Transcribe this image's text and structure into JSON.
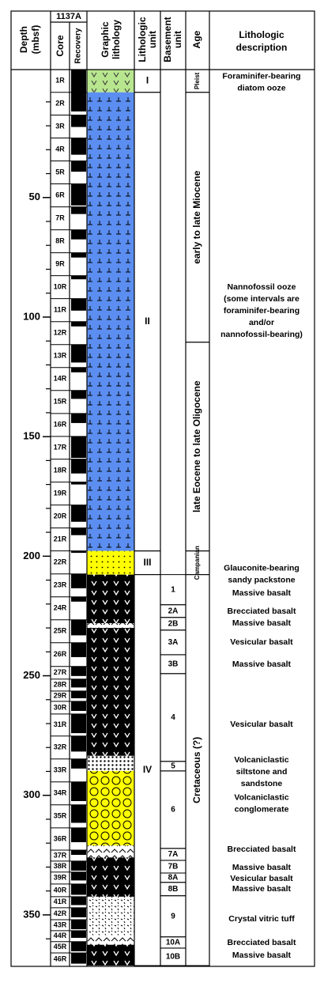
{
  "header": {
    "depth": [
      "Depth",
      "(mbsf)"
    ],
    "hole": "1137A",
    "core": "Core",
    "recovery": "Recovery",
    "graphic": [
      "Graphic",
      "lithology"
    ],
    "lithologic_unit": [
      "Lithologic",
      "unit"
    ],
    "basement_unit": [
      "Basement",
      "unit"
    ],
    "age": "Age",
    "description": [
      "Lithologic",
      "description"
    ]
  },
  "depth": {
    "range": [
      -3.5,
      371.2
    ],
    "ticks": [
      50,
      100,
      150,
      200,
      250,
      300,
      350
    ],
    "minor_ticks": [
      10,
      20,
      30,
      40,
      60,
      70,
      80,
      90,
      110,
      120,
      130,
      140,
      160,
      170,
      180,
      190,
      210,
      220,
      230,
      240,
      260,
      270,
      280,
      290,
      310,
      320,
      330,
      340,
      360
    ]
  },
  "cores": [
    {
      "name": "1R",
      "top": -3.5,
      "recovery": 9.5
    },
    {
      "name": "2R",
      "top": 6.0,
      "recovery": 8
    },
    {
      "name": "3R",
      "top": 15.5,
      "recovery": 5
    },
    {
      "name": "4R",
      "top": 25.1,
      "recovery": 7
    },
    {
      "name": "5R",
      "top": 34.7,
      "recovery": 4.5
    },
    {
      "name": "6R",
      "top": 44.3,
      "recovery": 9
    },
    {
      "name": "7R",
      "top": 53.9,
      "recovery": 3
    },
    {
      "name": "8R",
      "top": 63.5,
      "recovery": 4
    },
    {
      "name": "9R",
      "top": 73.1,
      "recovery": 2
    },
    {
      "name": "10R",
      "top": 82.7,
      "recovery": 1.5
    },
    {
      "name": "11R",
      "top": 92.3,
      "recovery": 5
    },
    {
      "name": "12R",
      "top": 101.9,
      "recovery": 2
    },
    {
      "name": "13R",
      "top": 111.5,
      "recovery": 7.5
    },
    {
      "name": "14R",
      "top": 121.1,
      "recovery": 2
    },
    {
      "name": "15R",
      "top": 130.7,
      "recovery": 3.5
    },
    {
      "name": "16R",
      "top": 140.3,
      "recovery": 4
    },
    {
      "name": "17R",
      "top": 149.9,
      "recovery": 9
    },
    {
      "name": "18R",
      "top": 159.4,
      "recovery": 6
    },
    {
      "name": "19R",
      "top": 169.0,
      "recovery": 1
    },
    {
      "name": "20R",
      "top": 178.6,
      "recovery": 7
    },
    {
      "name": "21R",
      "top": 188.2,
      "recovery": 3
    },
    {
      "name": "22R",
      "top": 197.8,
      "recovery": 0.8
    },
    {
      "name": "23R",
      "top": 207.4,
      "recovery": 6
    },
    {
      "name": "24R",
      "top": 217.0,
      "recovery": 2
    },
    {
      "name": "25R",
      "top": 226.6,
      "recovery": 6.5
    },
    {
      "name": "26R",
      "top": 236.2,
      "recovery": 6
    },
    {
      "name": "27R",
      "top": 246.1,
      "recovery": 4
    },
    {
      "name": "28R",
      "top": 251.4,
      "recovery": 3.5
    },
    {
      "name": "29R",
      "top": 256.4,
      "recovery": 3
    },
    {
      "name": "30R",
      "top": 260.7,
      "recovery": 4
    },
    {
      "name": "31R",
      "top": 266.0,
      "recovery": 8
    },
    {
      "name": "32R",
      "top": 275.2,
      "recovery": 6.5
    },
    {
      "name": "33R",
      "top": 284.8,
      "recovery": 4
    },
    {
      "name": "34R",
      "top": 294.4,
      "recovery": 8
    },
    {
      "name": "35R",
      "top": 304.0,
      "recovery": 7.5
    },
    {
      "name": "36R",
      "top": 313.6,
      "recovery": 6
    },
    {
      "name": "37R",
      "top": 322.9,
      "recovery": 2
    },
    {
      "name": "38R",
      "top": 327.5,
      "recovery": 4
    },
    {
      "name": "39R",
      "top": 332.1,
      "recovery": 3.5
    },
    {
      "name": "40R",
      "top": 337.1,
      "recovery": 4.5
    },
    {
      "name": "41R",
      "top": 342.4,
      "recovery": 3.5
    },
    {
      "name": "42R",
      "top": 347.0,
      "recovery": 4
    },
    {
      "name": "43R",
      "top": 352.0,
      "recovery": 4
    },
    {
      "name": "44R",
      "top": 356.6,
      "recovery": 3
    },
    {
      "name": "45R",
      "top": 361.2,
      "recovery": 4
    },
    {
      "name": "46R",
      "top": 365.9,
      "recovery": 4.5
    }
  ],
  "lithology": [
    {
      "top": -3.5,
      "bottom": 6.0,
      "pattern": "diatom"
    },
    {
      "top": 6.0,
      "bottom": 197.8,
      "pattern": "nanno"
    },
    {
      "top": 197.8,
      "bottom": 207.7,
      "pattern": "sand"
    },
    {
      "top": 207.7,
      "bottom": 228.0,
      "pattern": "basalt"
    },
    {
      "top": 228.0,
      "bottom": 230.0,
      "pattern": "breccia"
    },
    {
      "top": 230.0,
      "bottom": 283.5,
      "pattern": "basalt"
    },
    {
      "top": 283.5,
      "bottom": 289.8,
      "pattern": "silt"
    },
    {
      "top": 289.8,
      "bottom": 321.0,
      "pattern": "conglomerate"
    },
    {
      "top": 321.0,
      "bottom": 326.0,
      "pattern": "breccia"
    },
    {
      "top": 326.0,
      "bottom": 342.4,
      "pattern": "basalt"
    },
    {
      "top": 342.4,
      "bottom": 358.5,
      "pattern": "tuff"
    },
    {
      "top": 358.5,
      "bottom": 362.5,
      "pattern": "breccia"
    },
    {
      "top": 362.5,
      "bottom": 371.2,
      "pattern": "basalt"
    }
  ],
  "lithologic_units": [
    {
      "label": "I",
      "top": -3.5,
      "bottom": 6.0
    },
    {
      "label": "II",
      "top": 6.0,
      "bottom": 197.8
    },
    {
      "label": "III",
      "top": 197.8,
      "bottom": 207.7
    },
    {
      "label": "IV",
      "top": 207.7,
      "bottom": 371.2
    }
  ],
  "basement_units": [
    {
      "label": "1",
      "top": 207.7,
      "bottom": 220.3
    },
    {
      "label": "2A",
      "top": 220.3,
      "bottom": 225.6
    },
    {
      "label": "2B",
      "top": 225.6,
      "bottom": 230.9
    },
    {
      "label": "3A",
      "top": 230.9,
      "bottom": 241.2
    },
    {
      "label": "3B",
      "top": 241.2,
      "bottom": 249.1
    },
    {
      "label": "4",
      "top": 249.1,
      "bottom": 285.8
    },
    {
      "label": "5",
      "top": 285.8,
      "bottom": 289.8
    },
    {
      "label": "6",
      "top": 289.8,
      "bottom": 322.2
    },
    {
      "label": "7A",
      "top": 322.2,
      "bottom": 327.2
    },
    {
      "label": "7B",
      "top": 327.2,
      "bottom": 332.5
    },
    {
      "label": "8A",
      "top": 332.5,
      "bottom": 336.4
    },
    {
      "label": "8B",
      "top": 336.4,
      "bottom": 342.0
    },
    {
      "label": "9",
      "top": 342.0,
      "bottom": 359.2
    },
    {
      "label": "10A",
      "top": 359.2,
      "bottom": 363.9
    },
    {
      "label": "10B",
      "top": 363.9,
      "bottom": 371.2
    }
  ],
  "ages": [
    {
      "label": "Pleist",
      "top": -3.5,
      "bottom": 6.0
    },
    {
      "label": "early to late Miocene",
      "top": 6.0,
      "bottom": 110.5
    },
    {
      "label": "late Eocene to late Oligocene",
      "top": 110.5,
      "bottom": 197.8
    },
    {
      "label": "Campanian",
      "top": 197.8,
      "bottom": 207.7
    },
    {
      "label": "Cretaceous (?)",
      "top": 207.7,
      "bottom": 371.2
    }
  ],
  "descriptions": [
    [
      "Foraminifer-bearing",
      "diatom ooze"
    ],
    [
      "Nannofossil ooze",
      "(some intervals are",
      "foraminifer-bearing",
      "and/or",
      "nannofossil-bearing)"
    ],
    [
      "Glauconite-bearing",
      "sandy packstone"
    ],
    [
      "Massive basalt"
    ],
    [
      "Brecciated basalt"
    ],
    [
      "Massive basalt"
    ],
    [
      "Vesicular basalt"
    ],
    [
      "Massive basalt"
    ],
    [
      "Vesicular basalt"
    ],
    [
      "Volcaniclastic",
      "siltstone and",
      "sandstone"
    ],
    [
      "Volcaniclastic",
      "conglomerate"
    ],
    [
      "Brecciated basalt"
    ],
    [
      "Massive basalt"
    ],
    [
      "Vesicular basalt"
    ],
    [
      "Massive basalt"
    ],
    [
      "Crystal vitric tuff"
    ],
    [
      "Brecciated basalt"
    ],
    [
      "Massive basalt"
    ]
  ]
}
